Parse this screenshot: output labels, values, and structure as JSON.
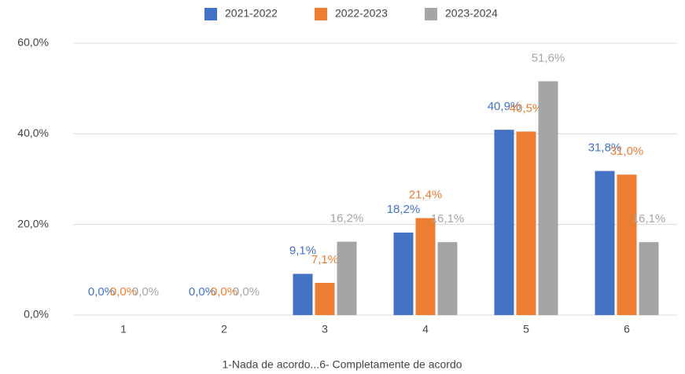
{
  "chart_data": {
    "type": "bar",
    "x_label": "1-Nada de acordo...6- Completamente de acordo",
    "categories": [
      "1",
      "2",
      "3",
      "4",
      "5",
      "6"
    ],
    "series": [
      {
        "name": "2021-2022",
        "color": "#4472c4",
        "values": [
          0,
          0,
          9.1,
          18.2,
          40.9,
          31.8
        ],
        "value_labels": [
          "0,0%",
          "0,0%",
          "9,1%",
          "18,2%",
          "40,9%",
          "31,8%"
        ]
      },
      {
        "name": "2022-2023",
        "color": "#ed7d31",
        "values": [
          0,
          0,
          7.1,
          21.4,
          40.5,
          31.0
        ],
        "value_labels": [
          "0,0%",
          "0,0%",
          "7,1%",
          "21,4%",
          "40,5%",
          "31,0%"
        ]
      },
      {
        "name": "2023-2024",
        "color": "#a5a5a5",
        "values": [
          0,
          0,
          16.2,
          16.1,
          51.6,
          16.1
        ],
        "value_labels": [
          "0,0%",
          "0,0%",
          "16,2%",
          "16,1%",
          "51,6%",
          "16,1%"
        ]
      }
    ],
    "ylim": [
      0,
      60
    ],
    "yticks": [
      {
        "value": 0,
        "label": "0,0%"
      },
      {
        "value": 20,
        "label": "20,0%"
      },
      {
        "value": 40,
        "label": "40,0%"
      },
      {
        "value": 60,
        "label": "60,0%"
      }
    ],
    "grid": true,
    "legend": "top"
  }
}
